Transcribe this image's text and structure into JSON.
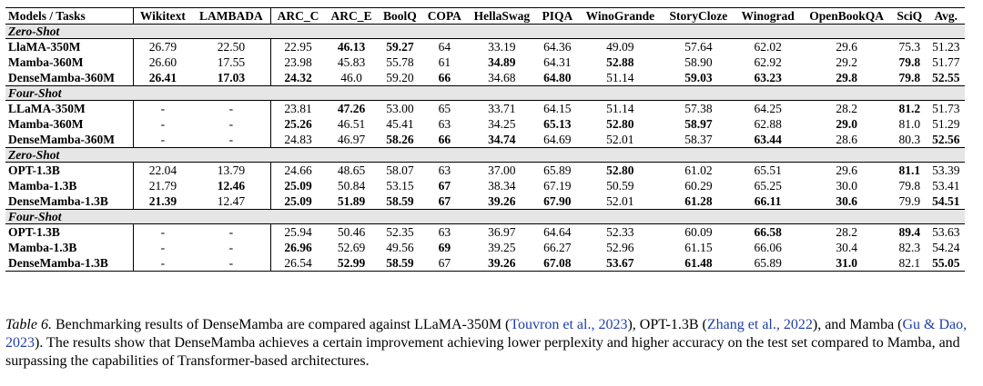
{
  "table": {
    "headers": [
      "Models / Tasks",
      "Wikitext",
      "LAMBADA",
      "ARC_C",
      "ARC_E",
      "BoolQ",
      "COPA",
      "HellaSwag",
      "PIQA",
      "WinoGrande",
      "StoryCloze",
      "Winograd",
      "OpenBookQA",
      "SciQ",
      "Avg."
    ],
    "sections": [
      {
        "title": "Zero-Shot",
        "rows": [
          {
            "model": "LlaMA-350M",
            "values": [
              "26.79",
              "22.50",
              "22.95",
              "46.13",
              "59.27",
              "64",
              "33.19",
              "64.36",
              "49.09",
              "57.64",
              "62.02",
              "29.6",
              "75.3",
              "51.23"
            ],
            "bold": [
              3,
              4
            ]
          },
          {
            "model": "Mamba-360M",
            "values": [
              "26.60",
              "17.55",
              "23.98",
              "45.83",
              "55.78",
              "61",
              "34.89",
              "64.31",
              "52.88",
              "58.90",
              "62.92",
              "29.2",
              "79.8",
              "51.77"
            ],
            "bold": [
              6,
              8,
              12
            ]
          },
          {
            "model": "DenseMamba-360M",
            "values": [
              "26.41",
              "17.03",
              "24.32",
              "46.0",
              "59.20",
              "66",
              "34.68",
              "64.80",
              "51.14",
              "59.03",
              "63.23",
              "29.8",
              "79.8",
              "52.55"
            ],
            "bold": [
              0,
              1,
              2,
              5,
              7,
              9,
              10,
              11,
              12,
              13
            ]
          }
        ]
      },
      {
        "title": "Four-Shot",
        "rows": [
          {
            "model": "LLaMA-350M",
            "values": [
              "-",
              "-",
              "23.81",
              "47.26",
              "53.00",
              "65",
              "33.71",
              "64.15",
              "51.14",
              "57.38",
              "64.25",
              "28.2",
              "81.2",
              "51.73"
            ],
            "bold": [
              3,
              12
            ]
          },
          {
            "model": "Mamba-360M",
            "values": [
              "-",
              "-",
              "25.26",
              "46.51",
              "45.41",
              "63",
              "34.25",
              "65.13",
              "52.80",
              "58.97",
              "62.88",
              "29.0",
              "81.0",
              "51.29"
            ],
            "bold": [
              2,
              7,
              8,
              9,
              11
            ]
          },
          {
            "model": "DenseMamba-360M",
            "values": [
              "-",
              "-",
              "24.83",
              "46.97",
              "58.26",
              "66",
              "34.74",
              "64.69",
              "52.01",
              "58.37",
              "63.44",
              "28.6",
              "80.3",
              "52.56"
            ],
            "bold": [
              4,
              5,
              6,
              10,
              13
            ]
          }
        ]
      },
      {
        "title": "Zero-Shot",
        "rows": [
          {
            "model": "OPT-1.3B",
            "values": [
              "22.04",
              "13.79",
              "24.66",
              "48.65",
              "58.07",
              "63",
              "37.00",
              "65.89",
              "52.80",
              "61.02",
              "65.51",
              "29.6",
              "81.1",
              "53.39"
            ],
            "bold": [
              8,
              12
            ]
          },
          {
            "model": "Mamba-1.3B",
            "values": [
              "21.79",
              "12.46",
              "25.09",
              "50.84",
              "53.15",
              "67",
              "38.34",
              "67.19",
              "50.59",
              "60.29",
              "65.25",
              "30.0",
              "79.8",
              "53.41"
            ],
            "bold": [
              1,
              2,
              5
            ]
          },
          {
            "model": "DenseMamba-1.3B",
            "values": [
              "21.39",
              "12.47",
              "25.09",
              "51.89",
              "58.59",
              "67",
              "39.26",
              "67.90",
              "52.01",
              "61.28",
              "66.11",
              "30.6",
              "79.9",
              "54.51"
            ],
            "bold": [
              0,
              2,
              3,
              4,
              5,
              6,
              7,
              9,
              10,
              11,
              13
            ]
          }
        ]
      },
      {
        "title": "Four-Shot",
        "rows": [
          {
            "model": "OPT-1.3B",
            "values": [
              "-",
              "-",
              "25.94",
              "50.46",
              "52.35",
              "63",
              "36.97",
              "64.64",
              "52.33",
              "60.09",
              "66.58",
              "28.2",
              "89.4",
              "53.63"
            ],
            "bold": [
              10,
              12
            ]
          },
          {
            "model": "Mamba-1.3B",
            "values": [
              "-",
              "-",
              "26.96",
              "52.69",
              "49.56",
              "69",
              "39.25",
              "66.27",
              "52.96",
              "61.15",
              "66.06",
              "30.4",
              "82.3",
              "54.24"
            ],
            "bold": [
              2,
              5
            ]
          },
          {
            "model": "DenseMamba-1.3B",
            "values": [
              "-",
              "-",
              "26.54",
              "52.99",
              "58.59",
              "67",
              "39.26",
              "67.08",
              "53.67",
              "61.48",
              "65.89",
              "31.0",
              "82.1",
              "55.05"
            ],
            "bold": [
              3,
              4,
              6,
              7,
              8,
              9,
              11,
              13
            ]
          }
        ]
      }
    ]
  },
  "caption": {
    "label": "Table 6.",
    "parts": [
      {
        "t": " Benchmarking results of DenseMamba are compared against LLaMA-350M ("
      },
      {
        "t": "Touvron et al., 2023",
        "cite": true
      },
      {
        "t": "), OPT-1.3B ("
      },
      {
        "t": "Zhang et al., 2022",
        "cite": true
      },
      {
        "t": "), and Mamba ("
      },
      {
        "t": "Gu & Dao, 2023",
        "cite": true
      },
      {
        "t": "). The results show that DenseMamba achieves a certain improvement achieving lower perplexity and higher accuracy on the test set compared to Mamba, and surpassing the capabilities of Transformer-based architectures."
      }
    ]
  }
}
